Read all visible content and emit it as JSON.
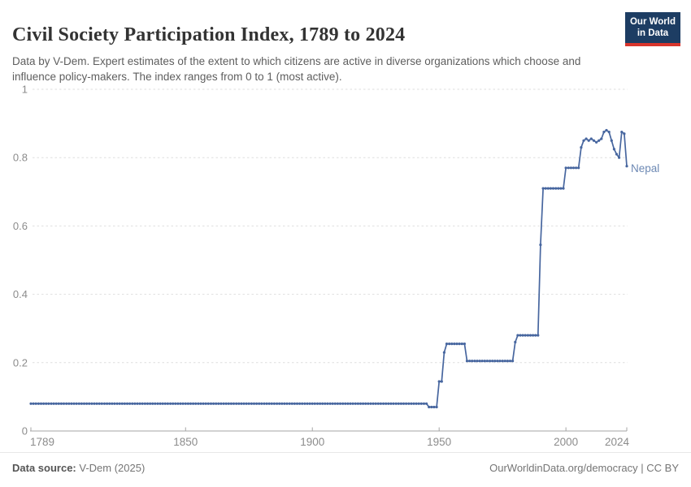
{
  "header": {
    "title": "Civil Society Participation Index, 1789 to 2024",
    "subtitle": "Data by V-Dem. Expert estimates of the extent to which citizens are active in diverse organizations which choose and influence policy-makers. The index ranges from 0 to 1 (most active).",
    "logo": {
      "line1": "Our World",
      "line2": "in Data",
      "bg_color": "#1d3d63",
      "stripe_color": "#d8352c"
    }
  },
  "chart_data": {
    "type": "line",
    "title": "Civil Society Participation Index, 1789 to 2024",
    "entity": "Nepal",
    "end_label": "Nepal",
    "xlabel": "",
    "ylabel": "",
    "xlim": [
      1789,
      2024
    ],
    "ylim": [
      0,
      1
    ],
    "x_ticks": [
      1789,
      1850,
      1900,
      1950,
      2000,
      2024
    ],
    "y_ticks": [
      0,
      0.2,
      0.4,
      0.6,
      0.8,
      1
    ],
    "grid": "horizontal-dashed",
    "legend_position": "end-of-line-label",
    "line_color": "#47669f",
    "end_label_color": "#6d89b4",
    "series_runs_comment": "each run is [start_year, end_year, index_value]; value applies to every year in range",
    "series_runs": [
      [
        1789,
        1945,
        0.08
      ],
      [
        1946,
        1949,
        0.07
      ],
      [
        1950,
        1951,
        0.145
      ],
      [
        1952,
        1952,
        0.23
      ],
      [
        1953,
        1960,
        0.255
      ],
      [
        1961,
        1979,
        0.205
      ],
      [
        1980,
        1980,
        0.26
      ],
      [
        1981,
        1989,
        0.28
      ],
      [
        1990,
        1990,
        0.545
      ],
      [
        1991,
        1999,
        0.71
      ],
      [
        2000,
        2005,
        0.77
      ],
      [
        2006,
        2006,
        0.83
      ],
      [
        2007,
        2007,
        0.85
      ],
      [
        2008,
        2008,
        0.855
      ],
      [
        2009,
        2009,
        0.85
      ],
      [
        2010,
        2010,
        0.855
      ],
      [
        2011,
        2011,
        0.85
      ],
      [
        2012,
        2012,
        0.845
      ],
      [
        2013,
        2013,
        0.85
      ],
      [
        2014,
        2014,
        0.855
      ],
      [
        2015,
        2015,
        0.875
      ],
      [
        2016,
        2016,
        0.88
      ],
      [
        2017,
        2017,
        0.875
      ],
      [
        2018,
        2018,
        0.85
      ],
      [
        2019,
        2019,
        0.825
      ],
      [
        2020,
        2020,
        0.81
      ],
      [
        2021,
        2021,
        0.8
      ],
      [
        2022,
        2022,
        0.875
      ],
      [
        2023,
        2023,
        0.87
      ],
      [
        2024,
        2024,
        0.775
      ]
    ]
  },
  "footer": {
    "source_label": "Data source:",
    "source_value": " V-Dem (2025)",
    "link": "OurWorldinData.org/democracy | CC BY"
  }
}
